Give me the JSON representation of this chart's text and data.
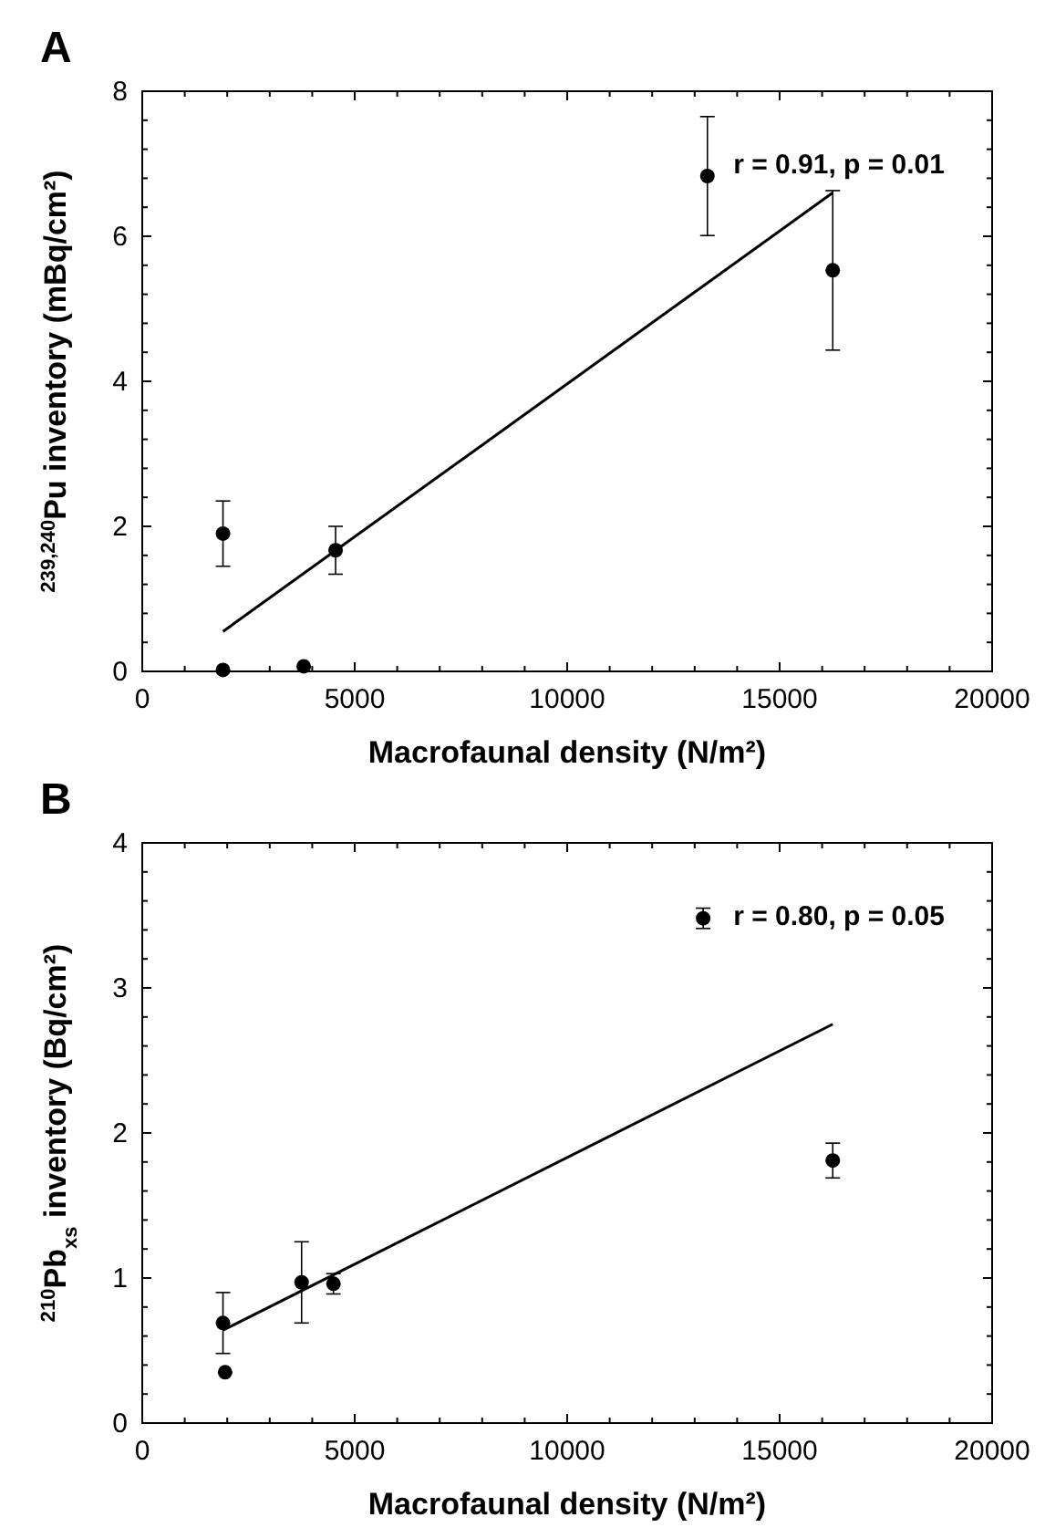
{
  "chart_data": [
    {
      "type": "scatter",
      "title": "A",
      "xlabel": "Macrofaunal density (N/m²)",
      "ylabel": "$^{239,240}$Pu inventory (mBq/cm²)",
      "xlim": [
        0,
        20000
      ],
      "ylim": [
        0,
        8
      ],
      "xticks": [
        0,
        {
          "value": 1000,
          "label": null
        },
        {
          "value": 2000,
          "label": null
        },
        {
          "value": 3000,
          "label": null
        },
        {
          "value": 4000,
          "label": null
        },
        5000,
        {
          "value": 6000,
          "label": null
        },
        {
          "value": 7000,
          "label": null
        },
        {
          "value": 8000,
          "label": null
        },
        {
          "value": 9000,
          "label": null
        },
        10000,
        {
          "value": 11000,
          "label": null
        },
        {
          "value": 12000,
          "label": null
        },
        {
          "value": 13000,
          "label": null
        },
        {
          "value": 14000,
          "label": null
        },
        15000,
        {
          "value": 16000,
          "label": null
        },
        {
          "value": 17000,
          "label": null
        },
        {
          "value": 18000,
          "label": null
        },
        {
          "value": 19000,
          "label": null
        },
        20000
      ],
      "yticks": [
        0,
        {
          "value": 0.4,
          "label": null
        },
        {
          "value": 0.8,
          "label": null
        },
        {
          "value": 1.2,
          "label": null
        },
        {
          "value": 1.6,
          "label": null
        },
        2,
        {
          "value": 2.4,
          "label": null
        },
        {
          "value": 2.8,
          "label": null
        },
        {
          "value": 3.2,
          "label": null
        },
        {
          "value": 3.6,
          "label": null
        },
        4,
        {
          "value": 4.4,
          "label": null
        },
        {
          "value": 4.8,
          "label": null
        },
        {
          "value": 5.2,
          "label": null
        },
        {
          "value": 5.6,
          "label": null
        },
        6,
        {
          "value": 6.4,
          "label": null
        },
        {
          "value": 6.8,
          "label": null
        },
        {
          "value": 7.2,
          "label": null
        },
        {
          "value": 7.6,
          "label": null
        },
        8
      ],
      "annotations": [
        "r = 0.91, p = 0.01"
      ],
      "marker": "circle",
      "grid": false,
      "series": [
        {
          "color": "#000000",
          "x": [
            1900,
            1900,
            3800,
            4550,
            13300,
            16250
          ],
          "values": [
            1.9,
            0.02,
            0.07,
            1.67,
            6.83,
            5.53
          ],
          "errors": [
            0.45,
            null,
            null,
            0.33,
            0.82,
            1.1
          ]
        },
        {
          "type": "line",
          "color": "#000000",
          "marker": "none",
          "line_style": "solid",
          "x": [
            1900,
            16250
          ],
          "values": [
            0.55,
            6.6
          ]
        }
      ]
    },
    {
      "type": "scatter",
      "title": "B",
      "xlabel": "Macrofaunal density (N/m²)",
      "ylabel": "$^{210}$Pb$_{xs}$ inventory (Bq/cm²)",
      "xlim": [
        0,
        20000
      ],
      "ylim": [
        0,
        4
      ],
      "xticks": [
        0,
        {
          "value": 1000,
          "label": null
        },
        {
          "value": 2000,
          "label": null
        },
        {
          "value": 3000,
          "label": null
        },
        {
          "value": 4000,
          "label": null
        },
        5000,
        {
          "value": 6000,
          "label": null
        },
        {
          "value": 7000,
          "label": null
        },
        {
          "value": 8000,
          "label": null
        },
        {
          "value": 9000,
          "label": null
        },
        10000,
        {
          "value": 11000,
          "label": null
        },
        {
          "value": 12000,
          "label": null
        },
        {
          "value": 13000,
          "label": null
        },
        {
          "value": 14000,
          "label": null
        },
        15000,
        {
          "value": 16000,
          "label": null
        },
        {
          "value": 17000,
          "label": null
        },
        {
          "value": 18000,
          "label": null
        },
        {
          "value": 19000,
          "label": null
        },
        20000
      ],
      "yticks": [
        0,
        {
          "value": 0.2,
          "label": null
        },
        {
          "value": 0.4,
          "label": null
        },
        {
          "value": 0.6,
          "label": null
        },
        {
          "value": 0.8,
          "label": null
        },
        1,
        {
          "value": 1.2,
          "label": null
        },
        {
          "value": 1.4,
          "label": null
        },
        {
          "value": 1.6,
          "label": null
        },
        {
          "value": 1.8,
          "label": null
        },
        2,
        {
          "value": 2.2,
          "label": null
        },
        {
          "value": 2.4,
          "label": null
        },
        {
          "value": 2.6,
          "label": null
        },
        {
          "value": 2.8,
          "label": null
        },
        3,
        {
          "value": 3.2,
          "label": null
        },
        {
          "value": 3.4,
          "label": null
        },
        {
          "value": 3.6,
          "label": null
        },
        {
          "value": 3.8,
          "label": null
        },
        4
      ],
      "annotations": [
        "r = 0.80, p = 0.05"
      ],
      "marker": "circle",
      "grid": false,
      "series": [
        {
          "color": "#000000",
          "x": [
            1900,
            1950,
            3750,
            4500,
            13200,
            16250
          ],
          "values": [
            0.69,
            0.35,
            0.97,
            0.96,
            3.48,
            1.81
          ],
          "errors": [
            0.21,
            null,
            0.28,
            0.07,
            0.07,
            0.12
          ]
        },
        {
          "type": "line",
          "color": "#000000",
          "marker": "none",
          "line_style": "solid",
          "x": [
            1900,
            16250
          ],
          "values": [
            0.64,
            2.75
          ]
        }
      ]
    }
  ]
}
